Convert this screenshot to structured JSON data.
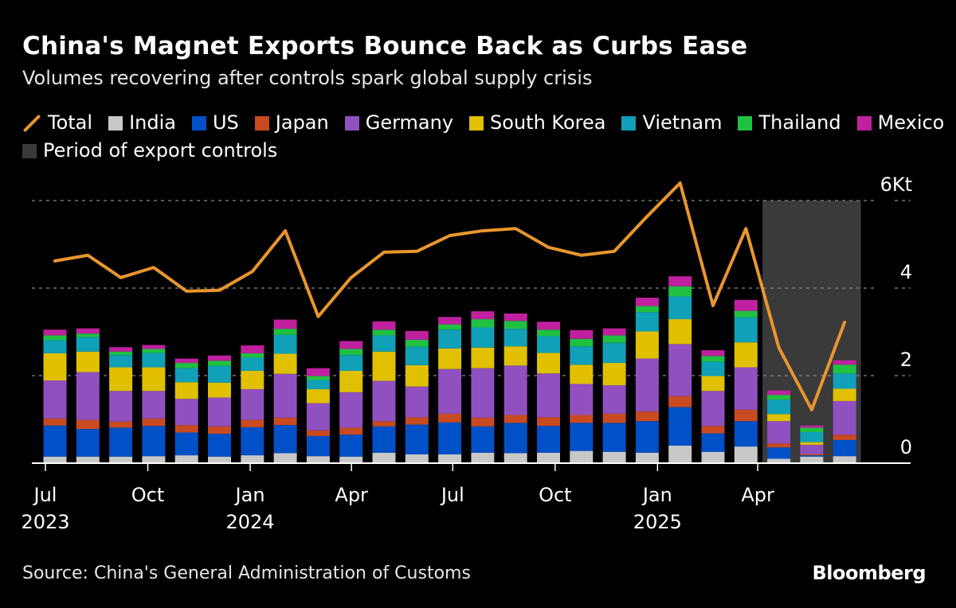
{
  "header": {
    "title": "China's Magnet Exports Bounce Back as Curbs Ease",
    "subtitle": "Volumes recovering after controls spark global supply crisis"
  },
  "footer": {
    "source": "Source: China's General Administration of Customs",
    "brand": "Bloomberg"
  },
  "chart_data": {
    "type": "bar",
    "stacked": true,
    "title": "China's Magnet Exports Bounce Back as Curbs Ease",
    "subtitle": "Volumes recovering after controls spark global supply crisis",
    "ylabel": "",
    "xlabel": "",
    "yunit": "Kt",
    "ylim": [
      0,
      6
    ],
    "yticks": [
      0,
      2,
      4,
      6
    ],
    "ytick_labels": [
      "0",
      "2",
      "4",
      "6Kt"
    ],
    "y_axis_side": "right",
    "grid": true,
    "legend_placement": "top",
    "categories": [
      "2023-07",
      "2023-08",
      "2023-09",
      "2023-10",
      "2023-11",
      "2023-12",
      "2024-01",
      "2024-02",
      "2024-03",
      "2024-04",
      "2024-05",
      "2024-06",
      "2024-07",
      "2024-08",
      "2024-09",
      "2024-10",
      "2024-11",
      "2024-12",
      "2025-01",
      "2025-02",
      "2025-03",
      "2025-04",
      "2025-05",
      "2025-06",
      "2025-07"
    ],
    "xticks": [
      {
        "date": "2023-07-01",
        "label": "Jul",
        "year": "2023"
      },
      {
        "date": "2023-10-01",
        "label": "Oct",
        "year": ""
      },
      {
        "date": "2024-01-01",
        "label": "Jan",
        "year": "2024"
      },
      {
        "date": "2024-04-01",
        "label": "Apr",
        "year": ""
      },
      {
        "date": "2024-07-01",
        "label": "Jul",
        "year": ""
      },
      {
        "date": "2024-10-01",
        "label": "Oct",
        "year": ""
      },
      {
        "date": "2025-01-01",
        "label": "Jan",
        "year": "2025"
      },
      {
        "date": "2025-04-01",
        "label": "Apr",
        "year": ""
      }
    ],
    "series": [
      {
        "name": "India",
        "color": "#c8c8c8",
        "values": [
          0.15,
          0.15,
          0.15,
          0.16,
          0.18,
          0.15,
          0.18,
          0.23,
          0.16,
          0.15,
          0.24,
          0.2,
          0.2,
          0.24,
          0.23,
          0.24,
          0.28,
          0.26,
          0.24,
          0.4,
          0.26,
          0.38,
          0.1,
          0.15,
          0.16
        ]
      },
      {
        "name": "US",
        "color": "#0050c8",
        "values": [
          0.71,
          0.63,
          0.66,
          0.69,
          0.52,
          0.52,
          0.64,
          0.64,
          0.46,
          0.5,
          0.6,
          0.68,
          0.73,
          0.6,
          0.69,
          0.61,
          0.64,
          0.66,
          0.72,
          0.88,
          0.42,
          0.58,
          0.26,
          0.03,
          0.37
        ]
      },
      {
        "name": "Japan",
        "color": "#c84a20",
        "values": [
          0.16,
          0.21,
          0.14,
          0.17,
          0.17,
          0.17,
          0.17,
          0.17,
          0.13,
          0.16,
          0.12,
          0.17,
          0.2,
          0.2,
          0.18,
          0.2,
          0.18,
          0.21,
          0.22,
          0.25,
          0.17,
          0.26,
          0.09,
          0.03,
          0.12
        ]
      },
      {
        "name": "Germany",
        "color": "#9050c0",
        "values": [
          0.87,
          1.09,
          0.7,
          0.63,
          0.6,
          0.66,
          0.7,
          1.0,
          0.62,
          0.81,
          0.92,
          0.7,
          1.02,
          1.13,
          1.13,
          1.0,
          0.71,
          0.65,
          1.21,
          1.19,
          0.8,
          0.97,
          0.51,
          0.21,
          0.77
        ]
      },
      {
        "name": "South Korea",
        "color": "#e0c000",
        "values": [
          0.62,
          0.47,
          0.54,
          0.54,
          0.38,
          0.34,
          0.42,
          0.46,
          0.32,
          0.49,
          0.67,
          0.49,
          0.47,
          0.47,
          0.44,
          0.47,
          0.44,
          0.51,
          0.62,
          0.57,
          0.34,
          0.57,
          0.16,
          0.06,
          0.28
        ]
      },
      {
        "name": "Vietnam",
        "color": "#10a0b8",
        "values": [
          0.3,
          0.33,
          0.28,
          0.33,
          0.32,
          0.38,
          0.3,
          0.43,
          0.21,
          0.36,
          0.37,
          0.42,
          0.43,
          0.46,
          0.4,
          0.38,
          0.42,
          0.46,
          0.44,
          0.52,
          0.33,
          0.57,
          0.33,
          0.23,
          0.35
        ]
      },
      {
        "name": "Thailand",
        "color": "#20c040",
        "values": [
          0.11,
          0.08,
          0.08,
          0.09,
          0.12,
          0.12,
          0.1,
          0.14,
          0.09,
          0.14,
          0.13,
          0.16,
          0.12,
          0.19,
          0.18,
          0.15,
          0.17,
          0.17,
          0.14,
          0.23,
          0.13,
          0.15,
          0.11,
          0.1,
          0.2
        ]
      },
      {
        "name": "Mexico",
        "color": "#c020a0",
        "values": [
          0.13,
          0.12,
          0.1,
          0.09,
          0.1,
          0.12,
          0.18,
          0.21,
          0.18,
          0.18,
          0.19,
          0.2,
          0.17,
          0.18,
          0.17,
          0.18,
          0.2,
          0.16,
          0.19,
          0.23,
          0.13,
          0.25,
          0.1,
          0.05,
          0.1
        ]
      }
    ],
    "line": {
      "name": "Total",
      "type": "line",
      "color": "#e8962e",
      "values": [
        4.62,
        4.75,
        4.24,
        4.47,
        3.93,
        3.95,
        4.38,
        5.31,
        3.35,
        4.24,
        4.82,
        4.84,
        5.2,
        5.31,
        5.36,
        4.93,
        4.75,
        4.84,
        5.64,
        6.4,
        3.6,
        5.36,
        2.64,
        1.22,
        3.22
      ]
    },
    "shaded_period": {
      "name": "Period of export controls",
      "color": "#3a3a3a",
      "start": "2025-05",
      "end": "2025-07"
    }
  }
}
